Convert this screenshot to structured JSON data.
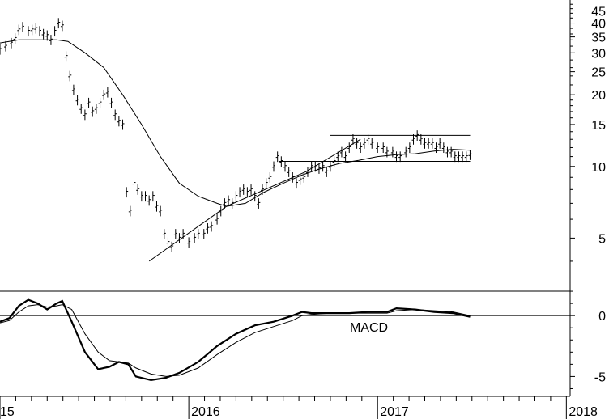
{
  "chart_data": [
    {
      "type": "line",
      "subtype": "ohlc-bar",
      "scale": "log",
      "ylim": [
        3.5,
        50
      ],
      "y_ticks": [
        5,
        10,
        15,
        20,
        25,
        30,
        35,
        40,
        45
      ],
      "y_tick_labels": [
        "5",
        "10",
        "15",
        "20",
        "25",
        "30",
        "35",
        "40",
        "45"
      ],
      "x_ticks": [
        "2015",
        "2016",
        "2017",
        "2018"
      ],
      "x_tick_labels": [
        "15",
        "2016",
        "2017",
        "2018"
      ],
      "x_range": [
        "2015-01-01",
        "2017-12-31"
      ],
      "series": [
        {
          "values": [
            [
              2015.0,
              31.0
            ],
            [
              2015.03,
              32.0
            ],
            [
              2015.06,
              33.0
            ],
            [
              2015.08,
              34.5
            ],
            [
              2015.1,
              37.5
            ],
            [
              2015.12,
              38.5
            ],
            [
              2015.15,
              37.0
            ],
            [
              2015.17,
              37.5
            ],
            [
              2015.19,
              38.0
            ],
            [
              2015.21,
              37.0
            ],
            [
              2015.23,
              36.0
            ],
            [
              2015.25,
              35.5
            ],
            [
              2015.27,
              34.0
            ],
            [
              2015.29,
              37.0
            ],
            [
              2015.31,
              40.0
            ],
            [
              2015.33,
              39.0
            ],
            [
              2015.35,
              29.0
            ],
            [
              2015.37,
              24.0
            ],
            [
              2015.39,
              21.0
            ],
            [
              2015.41,
              19.0
            ],
            [
              2015.43,
              17.5
            ],
            [
              2015.45,
              16.5
            ],
            [
              2015.47,
              18.5
            ],
            [
              2015.49,
              17.0
            ],
            [
              2015.51,
              17.5
            ],
            [
              2015.53,
              18.5
            ],
            [
              2015.55,
              20.0
            ],
            [
              2015.57,
              20.5
            ],
            [
              2015.59,
              18.5
            ],
            [
              2015.61,
              16.5
            ],
            [
              2015.63,
              15.5
            ],
            [
              2015.65,
              15.0
            ],
            [
              2015.67,
              7.8
            ],
            [
              2015.69,
              6.5
            ],
            [
              2015.71,
              8.5
            ],
            [
              2015.73,
              8.0
            ],
            [
              2015.75,
              7.5
            ],
            [
              2015.77,
              7.5
            ],
            [
              2015.79,
              7.2
            ],
            [
              2015.81,
              7.5
            ],
            [
              2015.83,
              6.8
            ],
            [
              2015.85,
              6.5
            ],
            [
              2015.87,
              5.2
            ],
            [
              2015.89,
              4.8
            ],
            [
              2015.91,
              4.6
            ],
            [
              2015.93,
              5.2
            ],
            [
              2015.95,
              5.0
            ],
            [
              2015.97,
              5.2
            ],
            [
              2016.0,
              4.8
            ],
            [
              2016.03,
              5.0
            ],
            [
              2016.05,
              5.2
            ],
            [
              2016.08,
              5.2
            ],
            [
              2016.1,
              5.5
            ],
            [
              2016.12,
              5.6
            ],
            [
              2016.15,
              6.0
            ],
            [
              2016.17,
              6.5
            ],
            [
              2016.19,
              7.0
            ],
            [
              2016.21,
              7.2
            ],
            [
              2016.23,
              7.0
            ],
            [
              2016.25,
              7.5
            ],
            [
              2016.27,
              7.8
            ],
            [
              2016.29,
              8.0
            ],
            [
              2016.31,
              7.8
            ],
            [
              2016.33,
              8.0
            ],
            [
              2016.35,
              7.5
            ],
            [
              2016.37,
              7.0
            ],
            [
              2016.39,
              8.0
            ],
            [
              2016.41,
              8.5
            ],
            [
              2016.43,
              9.0
            ],
            [
              2016.45,
              10.0
            ],
            [
              2016.47,
              11.0
            ],
            [
              2016.49,
              10.5
            ],
            [
              2016.51,
              10.0
            ],
            [
              2016.53,
              9.5
            ],
            [
              2016.55,
              9.0
            ],
            [
              2016.57,
              8.5
            ],
            [
              2016.59,
              8.8
            ],
            [
              2016.61,
              9.0
            ],
            [
              2016.63,
              9.5
            ],
            [
              2016.65,
              10.0
            ],
            [
              2016.67,
              10.0
            ],
            [
              2016.69,
              9.8
            ],
            [
              2016.71,
              10.0
            ],
            [
              2016.73,
              9.5
            ],
            [
              2016.75,
              10.0
            ],
            [
              2016.77,
              10.5
            ],
            [
              2016.79,
              11.0
            ],
            [
              2016.81,
              11.5
            ],
            [
              2016.83,
              11.0
            ],
            [
              2016.85,
              12.0
            ],
            [
              2016.87,
              13.0
            ],
            [
              2016.89,
              12.5
            ],
            [
              2016.91,
              12.0
            ],
            [
              2016.93,
              12.5
            ],
            [
              2016.95,
              13.0
            ],
            [
              2016.97,
              12.5
            ],
            [
              2017.0,
              12.0
            ],
            [
              2017.03,
              12.0
            ],
            [
              2017.05,
              11.5
            ],
            [
              2017.08,
              11.5
            ],
            [
              2017.1,
              11.0
            ],
            [
              2017.12,
              11.0
            ],
            [
              2017.15,
              11.5
            ],
            [
              2017.17,
              12.0
            ],
            [
              2017.19,
              13.0
            ],
            [
              2017.21,
              13.5
            ],
            [
              2017.23,
              13.0
            ],
            [
              2017.25,
              12.5
            ],
            [
              2017.27,
              12.5
            ],
            [
              2017.29,
              12.5
            ],
            [
              2017.31,
              12.0
            ],
            [
              2017.33,
              12.5
            ],
            [
              2017.35,
              12.0
            ],
            [
              2017.37,
              11.5
            ],
            [
              2017.39,
              11.5
            ],
            [
              2017.41,
              11.0
            ],
            [
              2017.43,
              11.0
            ],
            [
              2017.45,
              11.0
            ],
            [
              2017.47,
              11.0
            ],
            [
              2017.49,
              11.2
            ]
          ]
        },
        {
          "values": [
            [
              2015.0,
              33.0
            ],
            [
              2015.1,
              34.0
            ],
            [
              2015.2,
              34.0
            ],
            [
              2015.3,
              34.0
            ],
            [
              2015.36,
              33.5
            ],
            [
              2015.45,
              30.0
            ],
            [
              2015.55,
              26.0
            ],
            [
              2015.65,
              20.0
            ],
            [
              2015.75,
              15.0
            ],
            [
              2015.85,
              11.0
            ],
            [
              2015.95,
              8.5
            ],
            [
              2016.05,
              7.5
            ],
            [
              2016.15,
              7.0
            ],
            [
              2016.2,
              6.8
            ],
            [
              2016.3,
              7.0
            ],
            [
              2016.4,
              7.8
            ],
            [
              2016.5,
              8.5
            ],
            [
              2016.6,
              9.2
            ],
            [
              2016.7,
              9.8
            ],
            [
              2016.8,
              10.3
            ],
            [
              2016.9,
              10.6
            ],
            [
              2017.0,
              11.0
            ],
            [
              2017.1,
              11.2
            ],
            [
              2017.2,
              11.3
            ],
            [
              2017.3,
              11.6
            ],
            [
              2017.4,
              11.8
            ],
            [
              2017.49,
              11.7
            ]
          ]
        }
      ],
      "trendlines": [
        {
          "values": [
            [
              2015.79,
              4.0
            ],
            [
              2016.2,
              6.8
            ],
            [
              2016.62,
              9.5
            ],
            [
              2016.91,
              13.0
            ]
          ]
        },
        {
          "values": [
            [
              2016.48,
              10.5
            ],
            [
              2017.49,
              10.5
            ]
          ]
        },
        {
          "values": [
            [
              2016.75,
              13.5
            ],
            [
              2017.49,
              13.5
            ]
          ]
        }
      ]
    },
    {
      "type": "line",
      "annotation": "MACD",
      "ylim": [
        -6.5,
        3
      ],
      "y_ticks": [
        -5,
        0
      ],
      "y_tick_labels": [
        "-5",
        "0"
      ],
      "series": [
        {
          "values": [
            [
              2015.0,
              -0.5
            ],
            [
              2015.05,
              -0.2
            ],
            [
              2015.1,
              0.8
            ],
            [
              2015.15,
              1.3
            ],
            [
              2015.2,
              1.0
            ],
            [
              2015.25,
              0.5
            ],
            [
              2015.3,
              1.0
            ],
            [
              2015.33,
              1.2
            ],
            [
              2015.38,
              -0.5
            ],
            [
              2015.45,
              -3.0
            ],
            [
              2015.52,
              -4.4
            ],
            [
              2015.58,
              -4.2
            ],
            [
              2015.63,
              -3.8
            ],
            [
              2015.68,
              -4.0
            ],
            [
              2015.72,
              -5.0
            ],
            [
              2015.8,
              -5.3
            ],
            [
              2015.88,
              -5.1
            ],
            [
              2015.95,
              -4.7
            ],
            [
              2016.05,
              -3.8
            ],
            [
              2016.15,
              -2.5
            ],
            [
              2016.25,
              -1.5
            ],
            [
              2016.35,
              -0.8
            ],
            [
              2016.45,
              -0.5
            ],
            [
              2016.55,
              0.0
            ],
            [
              2016.6,
              0.3
            ],
            [
              2016.65,
              0.2
            ],
            [
              2016.75,
              0.2
            ],
            [
              2016.85,
              0.2
            ],
            [
              2016.95,
              0.3
            ],
            [
              2017.05,
              0.3
            ],
            [
              2017.1,
              0.6
            ],
            [
              2017.2,
              0.5
            ],
            [
              2017.3,
              0.3
            ],
            [
              2017.4,
              0.2
            ],
            [
              2017.49,
              -0.1
            ]
          ]
        },
        {
          "values": [
            [
              2015.0,
              -0.6
            ],
            [
              2015.05,
              -0.4
            ],
            [
              2015.1,
              0.3
            ],
            [
              2015.15,
              0.8
            ],
            [
              2015.2,
              0.9
            ],
            [
              2015.25,
              0.7
            ],
            [
              2015.3,
              0.8
            ],
            [
              2015.33,
              0.9
            ],
            [
              2015.38,
              0.5
            ],
            [
              2015.45,
              -1.5
            ],
            [
              2015.52,
              -3.0
            ],
            [
              2015.58,
              -3.7
            ],
            [
              2015.63,
              -3.8
            ],
            [
              2015.68,
              -3.9
            ],
            [
              2015.72,
              -4.3
            ],
            [
              2015.8,
              -4.8
            ],
            [
              2015.88,
              -5.0
            ],
            [
              2015.95,
              -4.9
            ],
            [
              2016.05,
              -4.3
            ],
            [
              2016.15,
              -3.2
            ],
            [
              2016.25,
              -2.2
            ],
            [
              2016.35,
              -1.4
            ],
            [
              2016.45,
              -0.9
            ],
            [
              2016.55,
              -0.4
            ],
            [
              2016.6,
              0.0
            ],
            [
              2016.65,
              0.1
            ],
            [
              2016.75,
              0.2
            ],
            [
              2016.85,
              0.2
            ],
            [
              2016.95,
              0.2
            ],
            [
              2017.05,
              0.2
            ],
            [
              2017.1,
              0.4
            ],
            [
              2017.2,
              0.5
            ],
            [
              2017.3,
              0.4
            ],
            [
              2017.4,
              0.3
            ],
            [
              2017.49,
              0.0
            ]
          ]
        }
      ],
      "hlines": [
        2.0,
        0.0
      ]
    }
  ]
}
